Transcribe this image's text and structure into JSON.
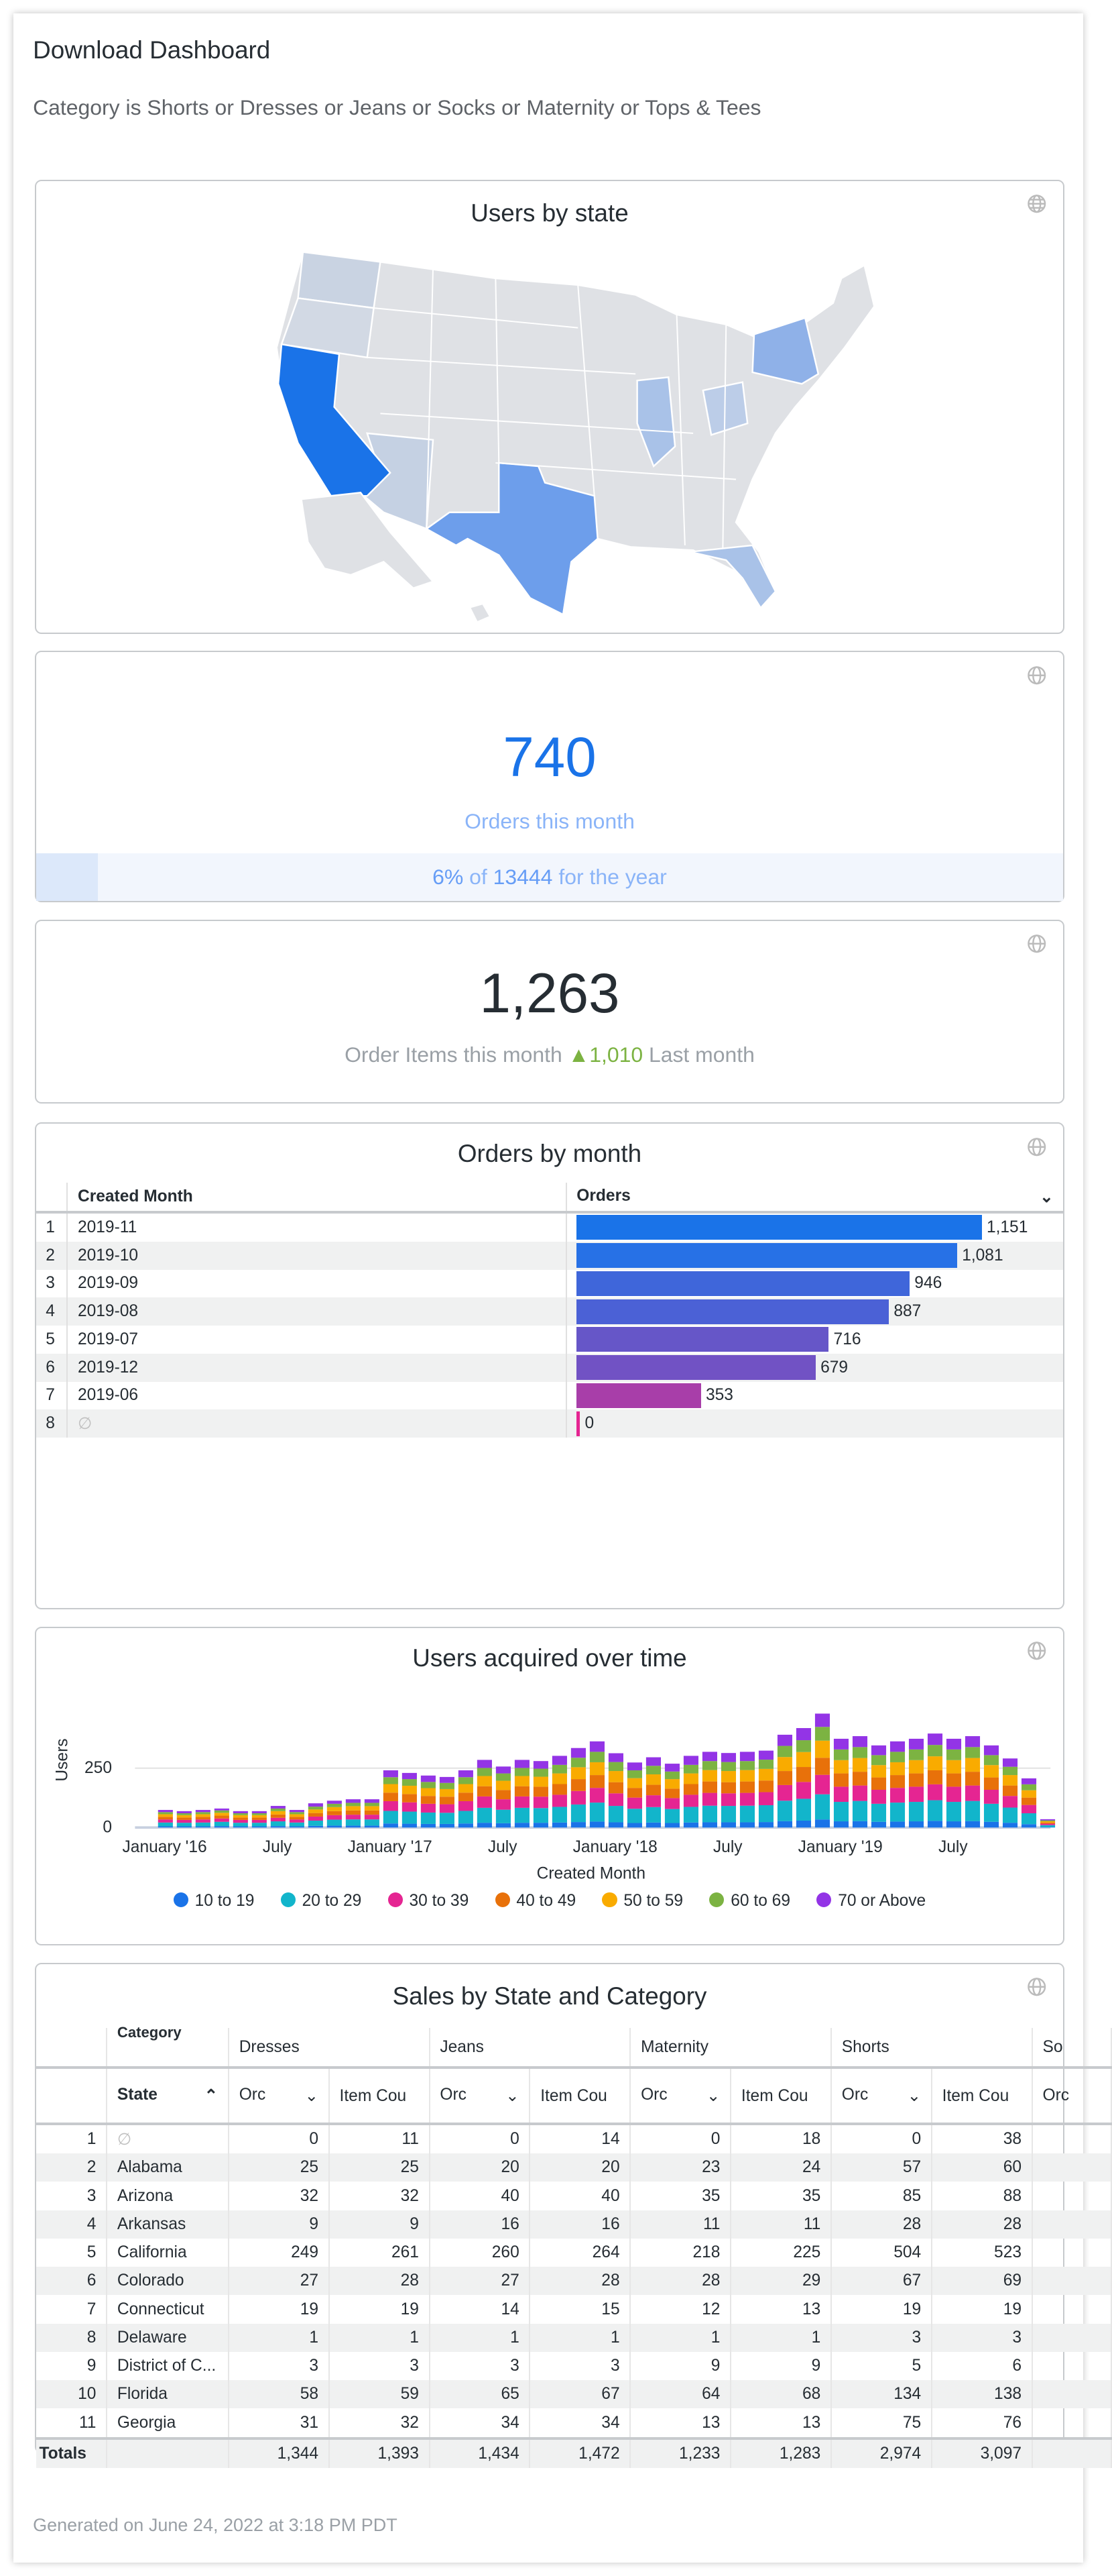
{
  "header": {
    "title": "Download Dashboard",
    "filters": "Category is Shorts or Dresses or Jeans or Socks or Maternity or Tops & Tees"
  },
  "colors": {
    "accent": "#1a73e8",
    "positive": "#7cb342",
    "muted": "#9aa0a6",
    "kpi_light": "#8ab4f8"
  },
  "map": {
    "title": "Users by state",
    "base_color": "#dfe1e5",
    "highlighted_states": [
      {
        "state": "California",
        "color": "#1a73e8"
      },
      {
        "state": "Texas",
        "color": "#6d9eeb"
      },
      {
        "state": "New York",
        "color": "#8fb1e8"
      },
      {
        "state": "Florida",
        "color": "#a9c2e8"
      },
      {
        "state": "Illinois",
        "color": "#a9c2e8"
      },
      {
        "state": "Ohio",
        "color": "#bccde8"
      },
      {
        "state": "Arizona",
        "color": "#c5d1e3"
      },
      {
        "state": "Washington",
        "color": "#c9d3e2"
      }
    ]
  },
  "kpi_orders": {
    "value": "740",
    "label": "Orders this month",
    "progress_percent": 6,
    "progress_pct_text": "6%",
    "progress_of": "of",
    "progress_total": "13444",
    "progress_suffix": "for the year"
  },
  "kpi_items": {
    "value": "1,263",
    "label": "Order Items this month",
    "change_icon": "triangle-up-icon",
    "comparison_value": "1,010",
    "comparison_label": "Last month"
  },
  "orders_by_month": {
    "title": "Orders by month",
    "columns": [
      "Created Month",
      "Orders"
    ],
    "sort_icon": "chevron-down-icon",
    "rows": [
      [
        "2019-11",
        1151,
        "1,151"
      ],
      [
        "2019-10",
        1081,
        "1,081"
      ],
      [
        "2019-09",
        946,
        "946"
      ],
      [
        "2019-08",
        887,
        "887"
      ],
      [
        "2019-07",
        716,
        "716"
      ],
      [
        "2019-12",
        679,
        "679"
      ],
      [
        "2019-06",
        353,
        "353"
      ],
      [
        "∅",
        0,
        "0"
      ]
    ],
    "bar_colors": [
      "#1a73e8",
      "#2771e6",
      "#3f66da",
      "#4b61d6",
      "#6656c8",
      "#7152c4",
      "#a83ea9",
      "#e52592"
    ]
  },
  "chart_data": {
    "type": "bar",
    "stacked": true,
    "title": "Users acquired over time",
    "xlabel": "Created Month",
    "ylabel": "Users",
    "ylim": [
      0,
      500
    ],
    "yticks": [
      0,
      250
    ],
    "grid": true,
    "legend_position": "bottom",
    "x_tick_labels": [
      {
        "index": 0,
        "label": "January '16"
      },
      {
        "index": 6,
        "label": "July"
      },
      {
        "index": 12,
        "label": "January '17"
      },
      {
        "index": 18,
        "label": "July"
      },
      {
        "index": 24,
        "label": "January '18"
      },
      {
        "index": 30,
        "label": "July"
      },
      {
        "index": 36,
        "label": "January '19"
      },
      {
        "index": 42,
        "label": "July"
      }
    ],
    "categories": [
      "2016-01",
      "2016-02",
      "2016-03",
      "2016-04",
      "2016-05",
      "2016-06",
      "2016-07",
      "2016-08",
      "2016-09",
      "2016-10",
      "2016-11",
      "2016-12",
      "2017-01",
      "2017-02",
      "2017-03",
      "2017-04",
      "2017-05",
      "2017-06",
      "2017-07",
      "2017-08",
      "2017-09",
      "2017-10",
      "2017-11",
      "2017-12",
      "2018-01",
      "2018-02",
      "2018-03",
      "2018-04",
      "2018-05",
      "2018-06",
      "2018-07",
      "2018-08",
      "2018-09",
      "2018-10",
      "2018-11",
      "2018-12",
      "2019-01",
      "2019-02",
      "2019-03",
      "2019-04",
      "2019-05",
      "2019-06",
      "2019-07",
      "2019-08",
      "2019-09",
      "2019-10",
      "2019-11",
      "2019-12"
    ],
    "series": [
      {
        "name": "10 to 19",
        "color": "#1a73e8",
        "values": [
          5,
          5,
          5,
          6,
          5,
          5,
          6,
          5,
          7,
          8,
          8,
          8,
          17,
          16,
          15,
          15,
          17,
          20,
          18,
          20,
          20,
          21,
          23,
          25,
          22,
          19,
          21,
          19,
          21,
          22,
          22,
          22,
          23,
          27,
          29,
          34,
          26,
          27,
          24,
          25,
          26,
          28,
          26,
          27,
          24,
          20,
          14,
          2
        ]
      },
      {
        "name": "20 to 29",
        "color": "#12b5cb",
        "values": [
          16,
          15,
          16,
          18,
          15,
          15,
          20,
          16,
          22,
          25,
          26,
          26,
          53,
          51,
          48,
          47,
          53,
          63,
          57,
          63,
          62,
          66,
          74,
          80,
          69,
          60,
          65,
          59,
          66,
          70,
          69,
          70,
          71,
          86,
          92,
          106,
          82,
          85,
          76,
          80,
          82,
          87,
          82,
          85,
          76,
          64,
          46,
          8
        ]
      },
      {
        "name": "30 to 39",
        "color": "#e52592",
        "values": [
          13,
          12,
          13,
          14,
          12,
          12,
          15,
          13,
          17,
          19,
          20,
          20,
          41,
          39,
          37,
          36,
          41,
          48,
          44,
          48,
          48,
          51,
          57,
          62,
          53,
          47,
          50,
          46,
          51,
          54,
          53,
          54,
          55,
          66,
          71,
          82,
          64,
          65,
          59,
          62,
          64,
          67,
          64,
          65,
          59,
          49,
          35,
          6
        ]
      },
      {
        "name": "40 to 49",
        "color": "#e8710a",
        "values": [
          11,
          10,
          11,
          12,
          10,
          10,
          14,
          11,
          15,
          17,
          18,
          18,
          36,
          35,
          33,
          32,
          36,
          43,
          39,
          43,
          42,
          45,
          50,
          54,
          47,
          41,
          44,
          40,
          45,
          48,
          47,
          48,
          49,
          59,
          63,
          72,
          56,
          58,
          52,
          54,
          56,
          59,
          56,
          58,
          52,
          44,
          31,
          5
        ]
      },
      {
        "name": "50 to 59",
        "color": "#f9ab00",
        "values": [
          11,
          10,
          11,
          12,
          10,
          10,
          14,
          11,
          15,
          17,
          18,
          18,
          36,
          35,
          33,
          32,
          36,
          43,
          39,
          43,
          42,
          45,
          50,
          54,
          47,
          41,
          44,
          40,
          45,
          48,
          47,
          48,
          49,
          59,
          63,
          72,
          56,
          58,
          52,
          54,
          56,
          59,
          56,
          58,
          52,
          44,
          31,
          5
        ]
      },
      {
        "name": "60 to 69",
        "color": "#7cb342",
        "values": [
          9,
          8,
          9,
          10,
          8,
          8,
          11,
          9,
          12,
          14,
          14,
          14,
          29,
          28,
          26,
          26,
          29,
          34,
          31,
          34,
          34,
          36,
          40,
          44,
          38,
          33,
          36,
          32,
          36,
          38,
          38,
          38,
          39,
          47,
          50,
          58,
          45,
          46,
          42,
          44,
          45,
          48,
          45,
          46,
          42,
          35,
          25,
          4
        ]
      },
      {
        "name": "70 or Above",
        "color": "#9334e6",
        "values": [
          9,
          9,
          9,
          8,
          9,
          9,
          11,
          9,
          14,
          13,
          15,
          15,
          29,
          26,
          27,
          25,
          29,
          34,
          29,
          34,
          32,
          38,
          41,
          44,
          37,
          33,
          36,
          33,
          38,
          39,
          38,
          39,
          38,
          47,
          51,
          56,
          45,
          46,
          41,
          44,
          45,
          48,
          45,
          46,
          41,
          35,
          25,
          5
        ]
      }
    ]
  },
  "sales": {
    "title": "Sales by State and Category",
    "pivot_label": "Category",
    "row_label": "State",
    "categories": [
      "Dresses",
      "Jeans",
      "Maternity",
      "Shorts",
      "So"
    ],
    "measure_labels": [
      "Orc",
      "Item Cou"
    ],
    "partial_measure": "Orc",
    "totals_label": "Totals",
    "rows": [
      [
        "∅",
        "0",
        "11",
        "0",
        "14",
        "0",
        "18",
        "0",
        "38"
      ],
      [
        "Alabama",
        "25",
        "25",
        "20",
        "20",
        "23",
        "24",
        "57",
        "60"
      ],
      [
        "Arizona",
        "32",
        "32",
        "40",
        "40",
        "35",
        "35",
        "85",
        "88"
      ],
      [
        "Arkansas",
        "9",
        "9",
        "16",
        "16",
        "11",
        "11",
        "28",
        "28"
      ],
      [
        "California",
        "249",
        "261",
        "260",
        "264",
        "218",
        "225",
        "504",
        "523"
      ],
      [
        "Colorado",
        "27",
        "28",
        "27",
        "28",
        "28",
        "29",
        "67",
        "69"
      ],
      [
        "Connecticut",
        "19",
        "19",
        "14",
        "15",
        "12",
        "13",
        "19",
        "19"
      ],
      [
        "Delaware",
        "1",
        "1",
        "1",
        "1",
        "1",
        "1",
        "3",
        "3"
      ],
      [
        "District of C...",
        "3",
        "3",
        "3",
        "3",
        "9",
        "9",
        "5",
        "6"
      ],
      [
        "Florida",
        "58",
        "59",
        "65",
        "67",
        "64",
        "68",
        "134",
        "138"
      ],
      [
        "Georgia",
        "31",
        "32",
        "34",
        "34",
        "13",
        "13",
        "75",
        "76"
      ]
    ],
    "totals": [
      "1,344",
      "1,393",
      "1,434",
      "1,472",
      "1,233",
      "1,283",
      "2,974",
      "3,097"
    ]
  },
  "footer": "Generated on June 24, 2022 at 3:18 PM PDT"
}
